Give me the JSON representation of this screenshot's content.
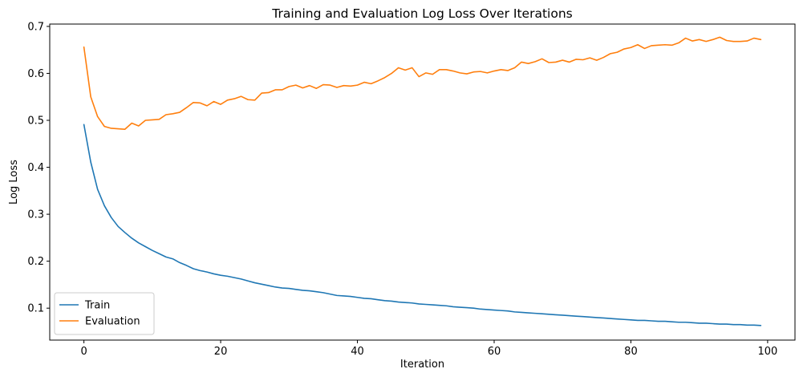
{
  "chart_data": {
    "type": "line",
    "title": "Training and Evaluation Log Loss Over Iterations",
    "xlabel": "Iteration",
    "ylabel": "Log Loss",
    "xlim": [
      -5,
      104
    ],
    "ylim": [
      0.032,
      0.705
    ],
    "xticks": [
      0,
      20,
      40,
      60,
      80,
      100
    ],
    "yticks": [
      0.1,
      0.2,
      0.3,
      0.4,
      0.5,
      0.6,
      0.7
    ],
    "xtick_labels": [
      "0",
      "20",
      "40",
      "60",
      "80",
      "100"
    ],
    "ytick_labels": [
      "0.1",
      "0.2",
      "0.3",
      "0.4",
      "0.5",
      "0.6",
      "0.7"
    ],
    "grid": false,
    "legend_position": "lower left",
    "series": [
      {
        "name": "Train",
        "color": "#1f77b4",
        "x": [
          0,
          1,
          2,
          3,
          4,
          5,
          6,
          7,
          8,
          9,
          10,
          11,
          12,
          13,
          14,
          15,
          16,
          17,
          18,
          19,
          20,
          21,
          22,
          23,
          24,
          25,
          26,
          27,
          28,
          29,
          30,
          31,
          32,
          33,
          34,
          35,
          36,
          37,
          38,
          39,
          40,
          41,
          42,
          43,
          44,
          45,
          46,
          47,
          48,
          49,
          50,
          51,
          52,
          53,
          54,
          55,
          56,
          57,
          58,
          59,
          60,
          61,
          62,
          63,
          64,
          65,
          66,
          67,
          68,
          69,
          70,
          71,
          72,
          73,
          74,
          75,
          76,
          77,
          78,
          79,
          80,
          81,
          82,
          83,
          84,
          85,
          86,
          87,
          88,
          89,
          90,
          91,
          92,
          93,
          94,
          95,
          96,
          97,
          98,
          99
        ],
        "values": [
          0.491,
          0.411,
          0.353,
          0.318,
          0.293,
          0.274,
          0.261,
          0.249,
          0.239,
          0.231,
          0.223,
          0.216,
          0.209,
          0.205,
          0.197,
          0.191,
          0.184,
          0.18,
          0.177,
          0.173,
          0.17,
          0.168,
          0.165,
          0.162,
          0.158,
          0.154,
          0.151,
          0.148,
          0.145,
          0.143,
          0.142,
          0.14,
          0.138,
          0.137,
          0.135,
          0.133,
          0.13,
          0.127,
          0.126,
          0.125,
          0.123,
          0.121,
          0.12,
          0.118,
          0.116,
          0.115,
          0.113,
          0.112,
          0.111,
          0.109,
          0.108,
          0.107,
          0.106,
          0.105,
          0.103,
          0.102,
          0.101,
          0.1,
          0.098,
          0.097,
          0.096,
          0.095,
          0.094,
          0.092,
          0.091,
          0.09,
          0.089,
          0.088,
          0.087,
          0.086,
          0.085,
          0.084,
          0.083,
          0.082,
          0.081,
          0.08,
          0.079,
          0.078,
          0.077,
          0.076,
          0.075,
          0.074,
          0.074,
          0.073,
          0.072,
          0.072,
          0.071,
          0.07,
          0.07,
          0.069,
          0.068,
          0.068,
          0.067,
          0.066,
          0.066,
          0.065,
          0.065,
          0.064,
          0.064,
          0.063
        ]
      },
      {
        "name": "Evaluation",
        "color": "#ff7f0e",
        "x": [
          0,
          1,
          2,
          3,
          4,
          5,
          6,
          7,
          8,
          9,
          10,
          11,
          12,
          13,
          14,
          15,
          16,
          17,
          18,
          19,
          20,
          21,
          22,
          23,
          24,
          25,
          26,
          27,
          28,
          29,
          30,
          31,
          32,
          33,
          34,
          35,
          36,
          37,
          38,
          39,
          40,
          41,
          42,
          43,
          44,
          45,
          46,
          47,
          48,
          49,
          50,
          51,
          52,
          53,
          54,
          55,
          56,
          57,
          58,
          59,
          60,
          61,
          62,
          63,
          64,
          65,
          66,
          67,
          68,
          69,
          70,
          71,
          72,
          73,
          74,
          75,
          76,
          77,
          78,
          79,
          80,
          81,
          82,
          83,
          84,
          85,
          86,
          87,
          88,
          89,
          90,
          91,
          92,
          93,
          94,
          95,
          96,
          97,
          98,
          99
        ],
        "values": [
          0.656,
          0.55,
          0.508,
          0.487,
          0.483,
          0.482,
          0.481,
          0.494,
          0.488,
          0.5,
          0.501,
          0.502,
          0.512,
          0.514,
          0.517,
          0.527,
          0.538,
          0.537,
          0.531,
          0.54,
          0.534,
          0.543,
          0.546,
          0.551,
          0.544,
          0.543,
          0.558,
          0.559,
          0.565,
          0.565,
          0.572,
          0.575,
          0.569,
          0.574,
          0.568,
          0.576,
          0.575,
          0.57,
          0.574,
          0.573,
          0.575,
          0.581,
          0.578,
          0.584,
          0.591,
          0.6,
          0.612,
          0.607,
          0.612,
          0.593,
          0.601,
          0.598,
          0.608,
          0.608,
          0.605,
          0.601,
          0.599,
          0.603,
          0.604,
          0.601,
          0.605,
          0.608,
          0.606,
          0.612,
          0.624,
          0.621,
          0.625,
          0.631,
          0.623,
          0.624,
          0.628,
          0.624,
          0.63,
          0.629,
          0.633,
          0.628,
          0.634,
          0.642,
          0.645,
          0.652,
          0.655,
          0.661,
          0.653,
          0.659,
          0.66,
          0.661,
          0.66,
          0.665,
          0.675,
          0.669,
          0.672,
          0.668,
          0.672,
          0.677,
          0.67,
          0.668,
          0.668,
          0.669,
          0.675,
          0.672
        ]
      }
    ]
  }
}
